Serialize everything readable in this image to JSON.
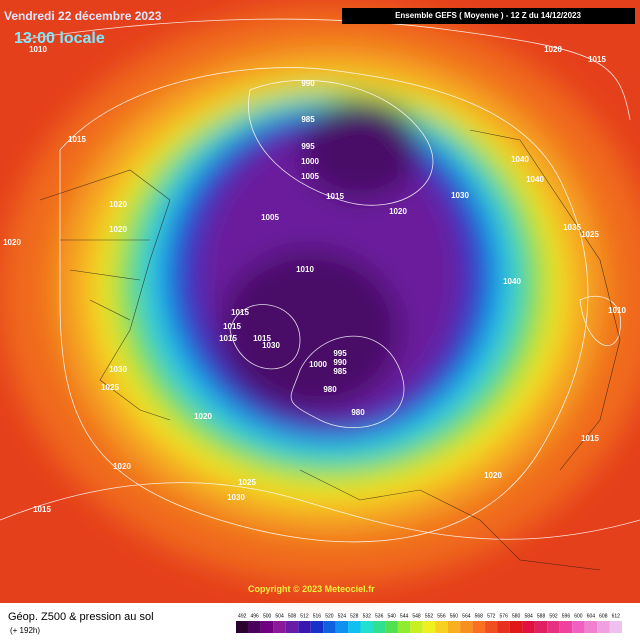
{
  "header": {
    "date": "Vendredi 22 décembre 2023",
    "time": "13:00 locale",
    "run": "Ensemble GEFS  ( Moyenne )  -  12 Z du 14/12/2023"
  },
  "map": {
    "copyright": "Copyright © 2023 Meteociel.fr",
    "isobar_labels": [
      "1010",
      "1020",
      "1015",
      "990",
      "985",
      "995",
      "1000",
      "1005",
      "1015",
      "1040",
      "1040",
      "1020",
      "1020",
      "1005",
      "1015",
      "1020",
      "1030",
      "1035",
      "1025",
      "1020",
      "1010",
      "1040",
      "1010",
      "1015",
      "1015",
      "1015",
      "1015",
      "1030",
      "995",
      "990",
      "1000",
      "985",
      "1030",
      "1025",
      "980",
      "980",
      "1020",
      "1015",
      "1020",
      "1020",
      "1025",
      "1030",
      "1015"
    ]
  },
  "footer": {
    "title": "Géop. Z500 & pression au sol",
    "lead": "(+ 192h)"
  },
  "legend": {
    "labels": [
      "492",
      "496",
      "500",
      "504",
      "508",
      "512",
      "516",
      "520",
      "524",
      "528",
      "532",
      "536",
      "540",
      "544",
      "548",
      "552",
      "556",
      "560",
      "564",
      "568",
      "572",
      "576",
      "580",
      "584",
      "588",
      "592",
      "596",
      "600",
      "604",
      "608",
      "612"
    ]
  }
}
